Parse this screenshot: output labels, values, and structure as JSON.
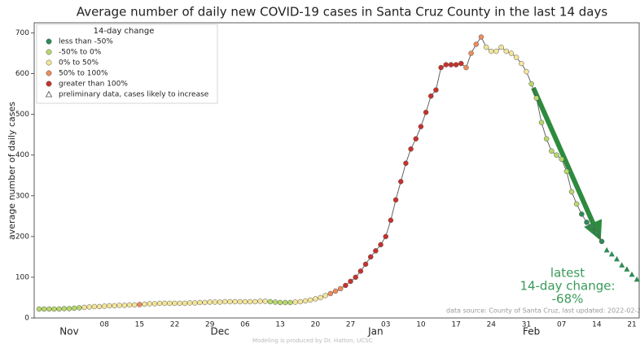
{
  "chart_data": {
    "type": "line",
    "title": "Average number of daily new COVID-19 cases in Santa Cruz County in the last 14 days",
    "y_label": "average number of daily cases",
    "ylim": [
      0,
      725
    ],
    "yticks": [
      0,
      100,
      200,
      300,
      400,
      500,
      600,
      700
    ],
    "grid": false,
    "categories": [
      null,
      null,
      null,
      null,
      null,
      null,
      null,
      null,
      null,
      null,
      null,
      null,
      null,
      "08",
      null,
      null,
      null,
      null,
      null,
      null,
      "15",
      null,
      null,
      null,
      null,
      null,
      null,
      "22",
      null,
      null,
      null,
      null,
      null,
      null,
      "29",
      null,
      null,
      null,
      null,
      null,
      null,
      "06",
      null,
      null,
      null,
      null,
      null,
      null,
      "13",
      null,
      null,
      null,
      null,
      null,
      null,
      "20",
      null,
      null,
      null,
      null,
      null,
      null,
      "27",
      null,
      null,
      null,
      null,
      null,
      null,
      "03",
      null,
      null,
      null,
      null,
      null,
      null,
      "10",
      null,
      null,
      null,
      null,
      null,
      null,
      "17",
      null,
      null,
      null,
      null,
      null,
      null,
      "24",
      null,
      null,
      null,
      null,
      null,
      null,
      "31",
      null,
      null,
      null,
      null,
      null,
      null,
      "07",
      null,
      null,
      null,
      null,
      null,
      null,
      "14",
      null,
      null,
      null,
      null,
      null,
      null,
      "21",
      null
    ],
    "month_labels": [
      null,
      null,
      null,
      null,
      null,
      null,
      "Nov",
      null,
      null,
      null,
      null,
      null,
      null,
      null,
      null,
      null,
      null,
      null,
      null,
      null,
      null,
      null,
      null,
      null,
      null,
      null,
      null,
      null,
      null,
      null,
      null,
      null,
      null,
      null,
      null,
      null,
      "Dec",
      null,
      null,
      null,
      null,
      null,
      null,
      null,
      null,
      null,
      null,
      null,
      null,
      null,
      null,
      null,
      null,
      null,
      null,
      null,
      null,
      null,
      null,
      null,
      null,
      null,
      null,
      null,
      null,
      null,
      null,
      "Jan",
      null,
      null,
      null,
      null,
      null,
      null,
      null,
      null,
      null,
      null,
      null,
      null,
      null,
      null,
      null,
      null,
      null,
      null,
      null,
      null,
      null,
      null,
      null,
      null,
      null,
      null,
      null,
      null,
      null,
      null,
      "Feb",
      null,
      null,
      null,
      null,
      null,
      null,
      null,
      null,
      null,
      null,
      null,
      null,
      null,
      null,
      null,
      null,
      null,
      null,
      null,
      null,
      null
    ],
    "series": [
      {
        "color": "#555555",
        "values": [
          22,
          22,
          22,
          22,
          22,
          23,
          23,
          24,
          25,
          26,
          27,
          28,
          28,
          29,
          30,
          30,
          31,
          31,
          32,
          32,
          33,
          34,
          35,
          35,
          36,
          36,
          36,
          36,
          36,
          36,
          37,
          37,
          38,
          38,
          39,
          39,
          39,
          40,
          40,
          40,
          40,
          40,
          40,
          40,
          41,
          41,
          40,
          39,
          38,
          38,
          38,
          39,
          40,
          42,
          44,
          47,
          50,
          55,
          60,
          66,
          72,
          80,
          90,
          100,
          115,
          132,
          150,
          165,
          180,
          200,
          240,
          290,
          335,
          380,
          415,
          440,
          470,
          505,
          545,
          560,
          615,
          622,
          622,
          622,
          625,
          615,
          650,
          672,
          690,
          665,
          655,
          655,
          665,
          655,
          650,
          640,
          625,
          605,
          575,
          540,
          480,
          440,
          410,
          400,
          390,
          360,
          310,
          280,
          255,
          235,
          225,
          210,
          188,
          null,
          null,
          null,
          null,
          null,
          null,
          null
        ],
        "marker_colors": [
          "#b7d86c",
          "#b7d86c",
          "#b7d86c",
          "#b7d86c",
          "#b7d86c",
          "#b7d86c",
          "#b7d86c",
          "#b7d86c",
          "#b7d86c",
          "#f3e59a",
          "#f3e59a",
          "#f3e59a",
          "#f3e59a",
          "#f3e59a",
          "#f3e59a",
          "#f3e59a",
          "#f3e59a",
          "#f3e59a",
          "#f3e59a",
          "#f3e59a",
          "#ee8c5c",
          "#f3e59a",
          "#f3e59a",
          "#f3e59a",
          "#f3e59a",
          "#f3e59a",
          "#f3e59a",
          "#f3e59a",
          "#f3e59a",
          "#f3e59a",
          "#f3e59a",
          "#f3e59a",
          "#f3e59a",
          "#f3e59a",
          "#f3e59a",
          "#f3e59a",
          "#f3e59a",
          "#f3e59a",
          "#f3e59a",
          "#f3e59a",
          "#f3e59a",
          "#f3e59a",
          "#f3e59a",
          "#f3e59a",
          "#f3e59a",
          "#f3e59a",
          "#b7d86c",
          "#b7d86c",
          "#b7d86c",
          "#b7d86c",
          "#b7d86c",
          "#f3e59a",
          "#f3e59a",
          "#f3e59a",
          "#f3e59a",
          "#f3e59a",
          "#f3e59a",
          "#f3e59a",
          "#ee8c5c",
          "#ee8c5c",
          "#ee8c5c",
          "#c8312b",
          "#c8312b",
          "#c8312b",
          "#c8312b",
          "#c8312b",
          "#c8312b",
          "#c8312b",
          "#c8312b",
          "#c8312b",
          "#c8312b",
          "#c8312b",
          "#c8312b",
          "#c8312b",
          "#c8312b",
          "#c8312b",
          "#c8312b",
          "#c8312b",
          "#c8312b",
          "#c8312b",
          "#c8312b",
          "#c8312b",
          "#c8312b",
          "#c8312b",
          "#c8312b",
          "#ee8c5c",
          "#ee8c5c",
          "#ee8c5c",
          "#ee8c5c",
          "#f3e59a",
          "#f3e59a",
          "#f3e59a",
          "#f3e59a",
          "#f3e59a",
          "#f3e59a",
          "#f3e59a",
          "#f3e59a",
          "#f3e59a",
          "#b7d86c",
          "#b7d86c",
          "#b7d86c",
          "#b7d86c",
          "#b7d86c",
          "#b7d86c",
          "#b7d86c",
          "#b7d86c",
          "#b7d86c",
          "#b7d86c",
          "#2e8b57",
          "#2e8b57",
          "#2e8b57",
          "#2e8b57",
          "#2e8b57",
          null,
          null,
          null,
          null,
          null,
          null,
          null
        ]
      },
      {
        "name": "preliminary data, cases likely to increase",
        "color": "#2e8b57",
        "values": [
          null,
          null,
          null,
          null,
          null,
          null,
          null,
          null,
          null,
          null,
          null,
          null,
          null,
          null,
          null,
          null,
          null,
          null,
          null,
          null,
          null,
          null,
          null,
          null,
          null,
          null,
          null,
          null,
          null,
          null,
          null,
          null,
          null,
          null,
          null,
          null,
          null,
          null,
          null,
          null,
          null,
          null,
          null,
          null,
          null,
          null,
          null,
          null,
          null,
          null,
          null,
          null,
          null,
          null,
          null,
          null,
          null,
          null,
          null,
          null,
          null,
          null,
          null,
          null,
          null,
          null,
          null,
          null,
          null,
          null,
          null,
          null,
          null,
          null,
          null,
          null,
          null,
          null,
          null,
          null,
          null,
          null,
          null,
          null,
          null,
          null,
          null,
          null,
          null,
          null,
          null,
          null,
          null,
          null,
          null,
          null,
          null,
          null,
          null,
          null,
          null,
          null,
          null,
          null,
          null,
          null,
          null,
          null,
          null,
          null,
          null,
          null,
          null,
          167,
          157,
          145,
          130,
          120,
          107,
          95
        ]
      }
    ],
    "legend": {
      "title": "14-day change",
      "position": "upper left",
      "entries": [
        {
          "label": "less than -50%",
          "color": "#2e8b57"
        },
        {
          "label": "-50% to 0%",
          "color": "#b7d86c"
        },
        {
          "label": "0% to 50%",
          "color": "#f3e59a"
        },
        {
          "label": "50% to 100%",
          "color": "#ee8c5c"
        },
        {
          "label": "greater than 100%",
          "color": "#c8312b"
        }
      ]
    },
    "annotation": [
      "latest",
      "14-day change:",
      "-68%"
    ],
    "source": "data source: County of Santa Cruz, last updated: 2022-02-2",
    "credit": "Modeling is produced by Dr. Hatton, UCSC"
  }
}
